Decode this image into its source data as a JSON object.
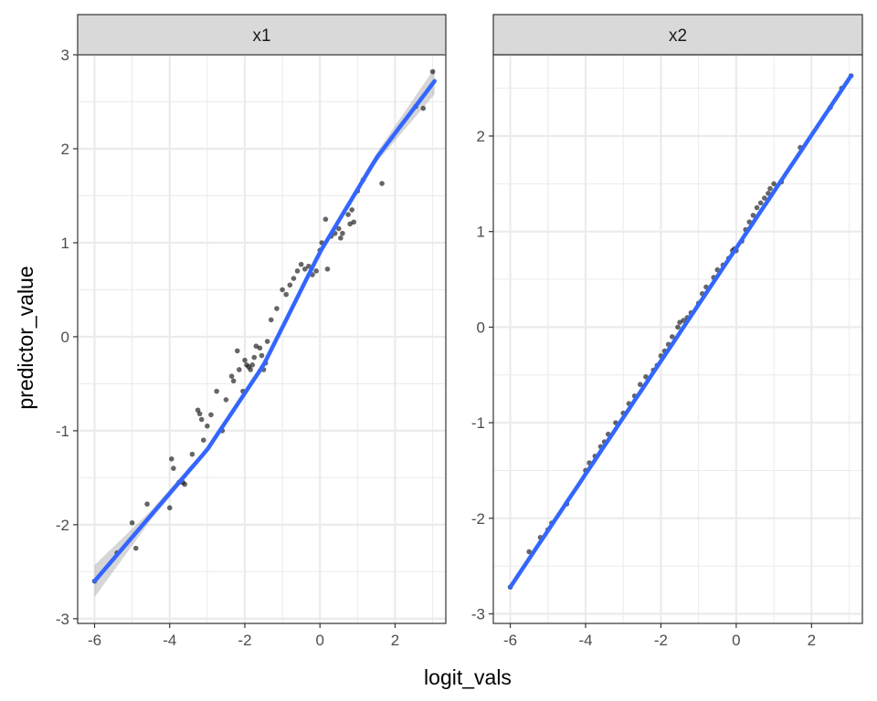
{
  "chart_data": {
    "type": "scatter",
    "xlabel": "logit_vals",
    "ylabel": "predictor_value",
    "colors": {
      "points": "#000000",
      "fit_line": "#3366ff",
      "ribbon": "#999999",
      "strip_fill": "#d9d9d9",
      "grid": "#ebebeb"
    },
    "panels": [
      {
        "strip": "x1",
        "xlim": [
          -6.45,
          3.35
        ],
        "ylim": [
          -3.05,
          3.0
        ],
        "x_ticks": [
          -6,
          -4,
          -2,
          0,
          2
        ],
        "y_ticks": [
          -3,
          -2,
          -1,
          0,
          1,
          2,
          3
        ],
        "fit_line": {
          "x": [
            -6.0,
            -4.5,
            -3.0,
            -1.5,
            0.0,
            1.5,
            3.05
          ],
          "y": [
            -2.6,
            -1.9,
            -1.2,
            -0.3,
            0.9,
            1.9,
            2.72
          ]
        },
        "ribbon_halfwidth": [
          0.17,
          0.05,
          0.03,
          0.03,
          0.03,
          0.05,
          0.14
        ],
        "points": {
          "x": [
            -6.0,
            -5.4,
            -5.0,
            -4.9,
            -4.6,
            -4.0,
            -3.9,
            -3.95,
            -3.75,
            -3.65,
            -3.6,
            -3.4,
            -3.25,
            -3.2,
            -3.15,
            -3.1,
            -3.0,
            -2.9,
            -2.75,
            -2.6,
            -2.5,
            -2.35,
            -2.3,
            -2.2,
            -2.15,
            -2.05,
            -2.0,
            -1.95,
            -1.9,
            -1.85,
            -1.8,
            -1.75,
            -1.7,
            -1.6,
            -1.55,
            -1.5,
            -1.45,
            -1.4,
            -1.3,
            -1.15,
            -1.0,
            -0.9,
            -0.8,
            -0.7,
            -0.6,
            -0.5,
            -0.4,
            -0.3,
            -0.2,
            -0.1,
            0.0,
            0.05,
            0.15,
            0.2,
            0.3,
            0.4,
            0.5,
            0.55,
            0.6,
            0.75,
            0.8,
            0.85,
            0.9,
            1.0,
            1.15,
            1.65,
            2.55,
            2.75,
            3.0
          ],
          "y": [
            -2.6,
            -2.3,
            -1.98,
            -2.25,
            -1.78,
            -1.82,
            -1.4,
            -1.3,
            -1.55,
            -1.55,
            -1.57,
            -1.25,
            -0.78,
            -0.82,
            -0.88,
            -1.1,
            -0.95,
            -0.83,
            -0.58,
            -1.0,
            -0.67,
            -0.42,
            -0.47,
            -0.15,
            -0.35,
            -0.58,
            -0.25,
            -0.3,
            -0.32,
            -0.35,
            -0.3,
            -0.22,
            -0.1,
            -0.12,
            -0.2,
            -0.35,
            -0.28,
            -0.05,
            0.18,
            0.3,
            0.5,
            0.45,
            0.55,
            0.62,
            0.7,
            0.77,
            0.72,
            0.75,
            0.66,
            0.7,
            0.92,
            1.0,
            1.25,
            0.72,
            1.07,
            1.1,
            1.15,
            1.05,
            1.1,
            1.3,
            1.2,
            1.35,
            1.22,
            1.55,
            1.67,
            1.63,
            2.45,
            2.43,
            2.82
          ]
        }
      },
      {
        "strip": "x2",
        "xlim": [
          -6.45,
          3.35
        ],
        "ylim": [
          -3.1,
          2.85
        ],
        "x_ticks": [
          -6,
          -4,
          -2,
          0,
          2
        ],
        "y_ticks": [
          -3,
          -2,
          -1,
          0,
          1,
          2
        ],
        "fit_line": {
          "x": [
            -6.0,
            3.05
          ],
          "y": [
            -2.72,
            2.63
          ]
        },
        "ribbon_halfwidth": [
          0.02,
          0.02
        ],
        "points": {
          "x": [
            -6.0,
            -5.5,
            -5.2,
            -5.0,
            -4.9,
            -4.5,
            -4.0,
            -3.9,
            -3.75,
            -3.6,
            -3.5,
            -3.4,
            -3.2,
            -3.0,
            -2.85,
            -2.7,
            -2.55,
            -2.4,
            -2.2,
            -2.1,
            -2.0,
            -1.9,
            -1.8,
            -1.7,
            -1.55,
            -1.5,
            -1.4,
            -1.3,
            -1.2,
            -1.0,
            -0.9,
            -0.8,
            -0.6,
            -0.5,
            -0.35,
            -0.2,
            -0.1,
            -0.05,
            0.0,
            0.15,
            0.25,
            0.35,
            0.45,
            0.55,
            0.65,
            0.75,
            0.85,
            0.9,
            1.0,
            1.2,
            1.7,
            2.5,
            2.8,
            3.05
          ],
          "y": [
            -2.72,
            -2.35,
            -2.2,
            -2.12,
            -2.05,
            -1.85,
            -1.5,
            -1.42,
            -1.35,
            -1.25,
            -1.2,
            -1.12,
            -1.0,
            -0.9,
            -0.8,
            -0.72,
            -0.6,
            -0.52,
            -0.45,
            -0.4,
            -0.3,
            -0.25,
            -0.18,
            -0.1,
            0.0,
            0.05,
            0.07,
            0.1,
            0.15,
            0.25,
            0.35,
            0.42,
            0.52,
            0.6,
            0.65,
            0.72,
            0.8,
            0.82,
            0.8,
            0.9,
            1.02,
            1.1,
            1.17,
            1.25,
            1.3,
            1.35,
            1.4,
            1.45,
            1.5,
            1.52,
            1.88,
            2.3,
            2.5,
            2.63
          ]
        }
      }
    ]
  }
}
